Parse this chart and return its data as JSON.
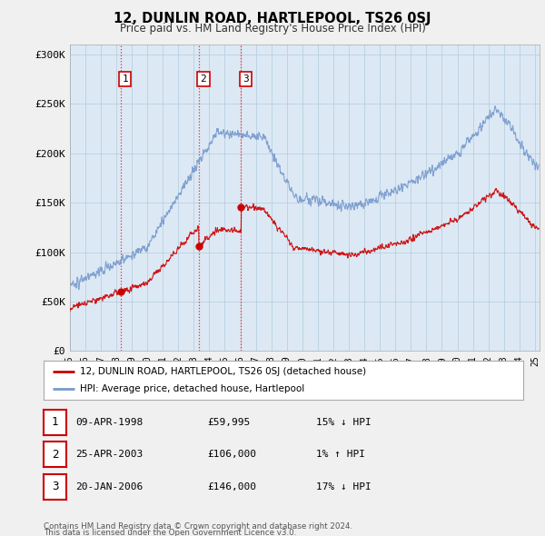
{
  "title": "12, DUNLIN ROAD, HARTLEPOOL, TS26 0SJ",
  "subtitle": "Price paid vs. HM Land Registry's House Price Index (HPI)",
  "ylim": [
    0,
    310000
  ],
  "yticks": [
    0,
    50000,
    100000,
    150000,
    200000,
    250000,
    300000
  ],
  "ytick_labels": [
    "£0",
    "£50K",
    "£100K",
    "£150K",
    "£200K",
    "£250K",
    "£300K"
  ],
  "sale_dates_num": [
    1998.27,
    2003.32,
    2006.05
  ],
  "sale_prices": [
    59995,
    106000,
    146000
  ],
  "sale_labels": [
    "1",
    "2",
    "3"
  ],
  "legend_red": "12, DUNLIN ROAD, HARTLEPOOL, TS26 0SJ (detached house)",
  "legend_blue": "HPI: Average price, detached house, Hartlepool",
  "table_data": [
    [
      "1",
      "09-APR-1998",
      "£59,995",
      "15% ↓ HPI"
    ],
    [
      "2",
      "25-APR-2003",
      "£106,000",
      "1% ↑ HPI"
    ],
    [
      "3",
      "20-JAN-2006",
      "£146,000",
      "17% ↓ HPI"
    ]
  ],
  "footnote1": "Contains HM Land Registry data © Crown copyright and database right 2024.",
  "footnote2": "This data is licensed under the Open Government Licence v3.0.",
  "background_color": "#f0f0f0",
  "plot_bg_color": "#dce9f5",
  "grid_color": "#b8cfe0",
  "red_color": "#cc0000",
  "blue_color": "#7799cc"
}
